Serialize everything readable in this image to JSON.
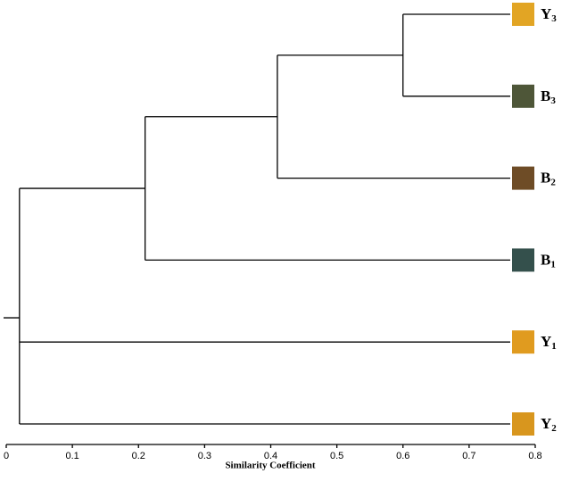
{
  "chart_data": {
    "type": "dendrogram",
    "xlabel": "Similarity Coefficient",
    "xlim": [
      0,
      0.8
    ],
    "xticks": [
      0,
      0.1,
      0.2,
      0.3,
      0.4,
      0.5,
      0.6,
      0.7,
      0.8
    ],
    "leaves": [
      {
        "name": "Y",
        "sub": "3",
        "color": "#e2a524"
      },
      {
        "name": "B",
        "sub": "3",
        "color": "#4e5638"
      },
      {
        "name": "B",
        "sub": "2",
        "color": "#6e4c26"
      },
      {
        "name": "B",
        "sub": "1",
        "color": "#34504c"
      },
      {
        "name": "Y",
        "sub": "1",
        "color": "#e09b1f"
      },
      {
        "name": "Y",
        "sub": "2",
        "color": "#d8961e"
      }
    ],
    "merges": [
      {
        "children": [
          0,
          1
        ],
        "height": 0.6
      },
      {
        "children": [
          6,
          2
        ],
        "height": 0.41
      },
      {
        "children": [
          7,
          3
        ],
        "height": 0.21
      },
      {
        "children": [
          8,
          4,
          5
        ],
        "height": 0.02
      }
    ]
  }
}
